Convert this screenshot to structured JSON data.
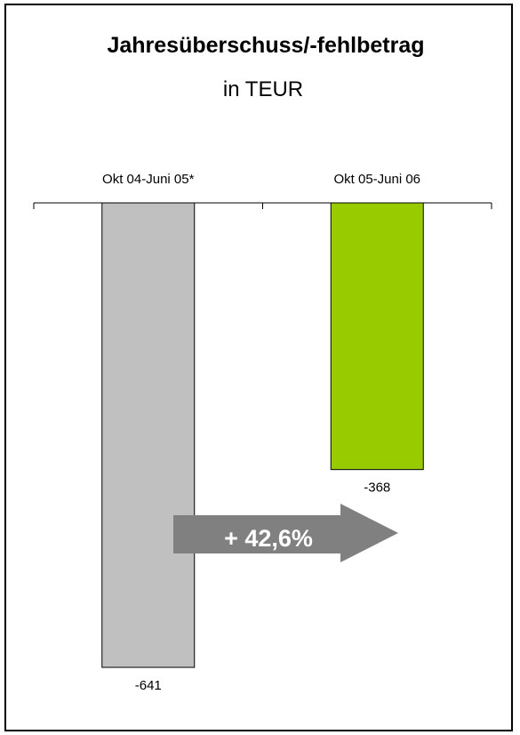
{
  "chart_data": {
    "type": "bar",
    "title": "Jahresüberschuss/-fehlbetrag",
    "subtitle": "in TEUR",
    "categories": [
      "Okt 04-Juni 05*",
      "Okt 05-Juni 06"
    ],
    "values": [
      -641,
      -368
    ],
    "data_labels": [
      "-641",
      "-368"
    ],
    "colors": [
      "#c0c0c0",
      "#99cc00"
    ],
    "ylim": [
      -700,
      0
    ],
    "grid": false,
    "legend": "none",
    "annotation": {
      "text": "+ 42,6%",
      "color": "#808080",
      "shape": "arrow-right"
    }
  }
}
